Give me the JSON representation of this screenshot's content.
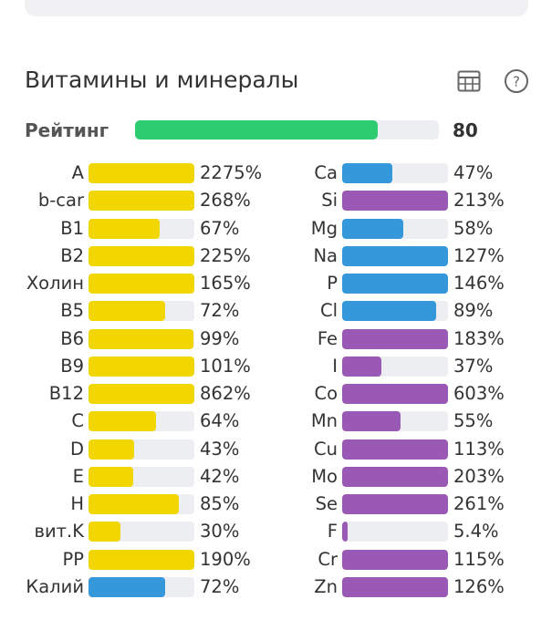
{
  "section": {
    "title": "Витамины и минералы",
    "table_icon": "table-icon",
    "help_icon": "help-icon"
  },
  "rating": {
    "label": "Рейтинг",
    "value": "80",
    "percent": 80
  },
  "colors": {
    "rating": "#2ecc71",
    "vitamin": "#f2d600",
    "mineral_blue": "#3498db",
    "mineral_purple": "#9b59b6",
    "track": "#eceef1"
  },
  "vitamins": [
    {
      "name": "A",
      "value": "2275%",
      "pct": 2275,
      "color": "vitamin"
    },
    {
      "name": "b-car",
      "value": "268%",
      "pct": 268,
      "color": "vitamin"
    },
    {
      "name": "B1",
      "value": "67%",
      "pct": 67,
      "color": "vitamin"
    },
    {
      "name": "B2",
      "value": "225%",
      "pct": 225,
      "color": "vitamin"
    },
    {
      "name": "Холин",
      "value": "165%",
      "pct": 165,
      "color": "vitamin"
    },
    {
      "name": "B5",
      "value": "72%",
      "pct": 72,
      "color": "vitamin"
    },
    {
      "name": "B6",
      "value": "99%",
      "pct": 99,
      "color": "vitamin"
    },
    {
      "name": "B9",
      "value": "101%",
      "pct": 101,
      "color": "vitamin"
    },
    {
      "name": "B12",
      "value": "862%",
      "pct": 862,
      "color": "vitamin"
    },
    {
      "name": "C",
      "value": "64%",
      "pct": 64,
      "color": "vitamin"
    },
    {
      "name": "D",
      "value": "43%",
      "pct": 43,
      "color": "vitamin"
    },
    {
      "name": "E",
      "value": "42%",
      "pct": 42,
      "color": "vitamin"
    },
    {
      "name": "H",
      "value": "85%",
      "pct": 85,
      "color": "vitamin"
    },
    {
      "name": "вит.K",
      "value": "30%",
      "pct": 30,
      "color": "vitamin"
    },
    {
      "name": "PP",
      "value": "190%",
      "pct": 190,
      "color": "vitamin"
    },
    {
      "name": "Калий",
      "value": "72%",
      "pct": 72,
      "color": "mineral_blue"
    }
  ],
  "minerals": [
    {
      "name": "Ca",
      "value": "47%",
      "pct": 47,
      "color": "mineral_blue"
    },
    {
      "name": "Si",
      "value": "213%",
      "pct": 213,
      "color": "mineral_purple"
    },
    {
      "name": "Mg",
      "value": "58%",
      "pct": 58,
      "color": "mineral_blue"
    },
    {
      "name": "Na",
      "value": "127%",
      "pct": 127,
      "color": "mineral_blue"
    },
    {
      "name": "P",
      "value": "146%",
      "pct": 146,
      "color": "mineral_blue"
    },
    {
      "name": "Cl",
      "value": "89%",
      "pct": 89,
      "color": "mineral_blue"
    },
    {
      "name": "Fe",
      "value": "183%",
      "pct": 183,
      "color": "mineral_purple"
    },
    {
      "name": "I",
      "value": "37%",
      "pct": 37,
      "color": "mineral_purple"
    },
    {
      "name": "Co",
      "value": "603%",
      "pct": 603,
      "color": "mineral_purple"
    },
    {
      "name": "Mn",
      "value": "55%",
      "pct": 55,
      "color": "mineral_purple"
    },
    {
      "name": "Cu",
      "value": "113%",
      "pct": 113,
      "color": "mineral_purple"
    },
    {
      "name": "Mo",
      "value": "203%",
      "pct": 203,
      "color": "mineral_purple"
    },
    {
      "name": "Se",
      "value": "261%",
      "pct": 261,
      "color": "mineral_purple"
    },
    {
      "name": "F",
      "value": "5.4%",
      "pct": 5.4,
      "color": "mineral_purple"
    },
    {
      "name": "Cr",
      "value": "115%",
      "pct": 115,
      "color": "mineral_purple"
    },
    {
      "name": "Zn",
      "value": "126%",
      "pct": 126,
      "color": "mineral_purple"
    }
  ]
}
